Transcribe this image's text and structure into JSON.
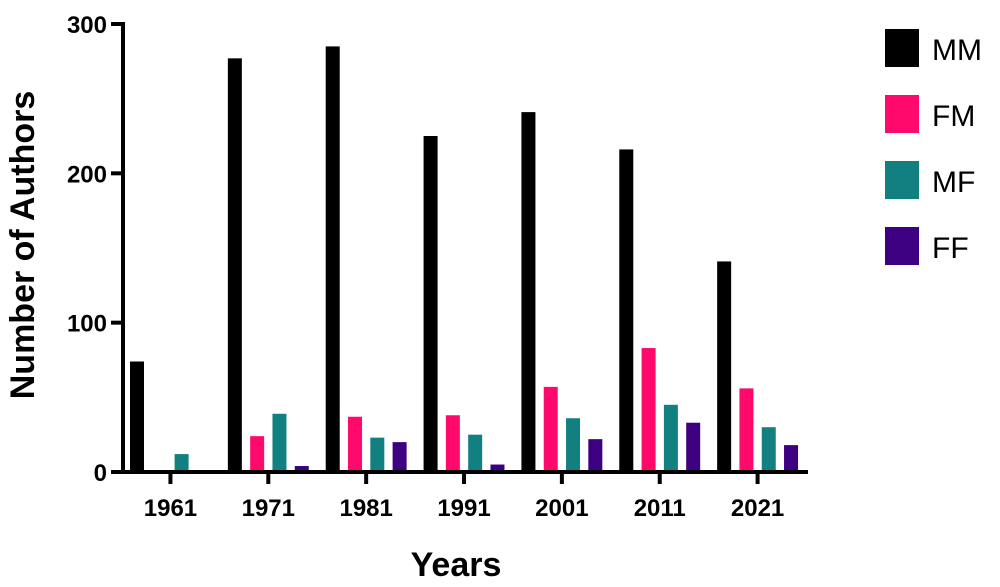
{
  "chart_data": {
    "type": "bar",
    "title": "",
    "xlabel": "Years",
    "ylabel": "Number of Authors",
    "ylim": [
      0,
      300
    ],
    "yticks": [
      "0",
      "100",
      "200",
      "300"
    ],
    "categories": [
      "1961",
      "1971",
      "1981",
      "1991",
      "2001",
      "2011",
      "2021"
    ],
    "series": [
      {
        "name": "MM",
        "color": "#000000",
        "values": [
          74,
          277,
          285,
          225,
          241,
          216,
          141
        ]
      },
      {
        "name": "FM",
        "color": "#ff0a6c",
        "values": [
          0,
          24,
          37,
          38,
          57,
          83,
          56
        ]
      },
      {
        "name": "MF",
        "color": "#128080",
        "values": [
          12,
          39,
          23,
          25,
          36,
          45,
          30
        ]
      },
      {
        "name": "FF",
        "color": "#3d0080",
        "values": [
          0,
          4,
          20,
          5,
          22,
          33,
          18
        ]
      }
    ],
    "legend": "right"
  }
}
